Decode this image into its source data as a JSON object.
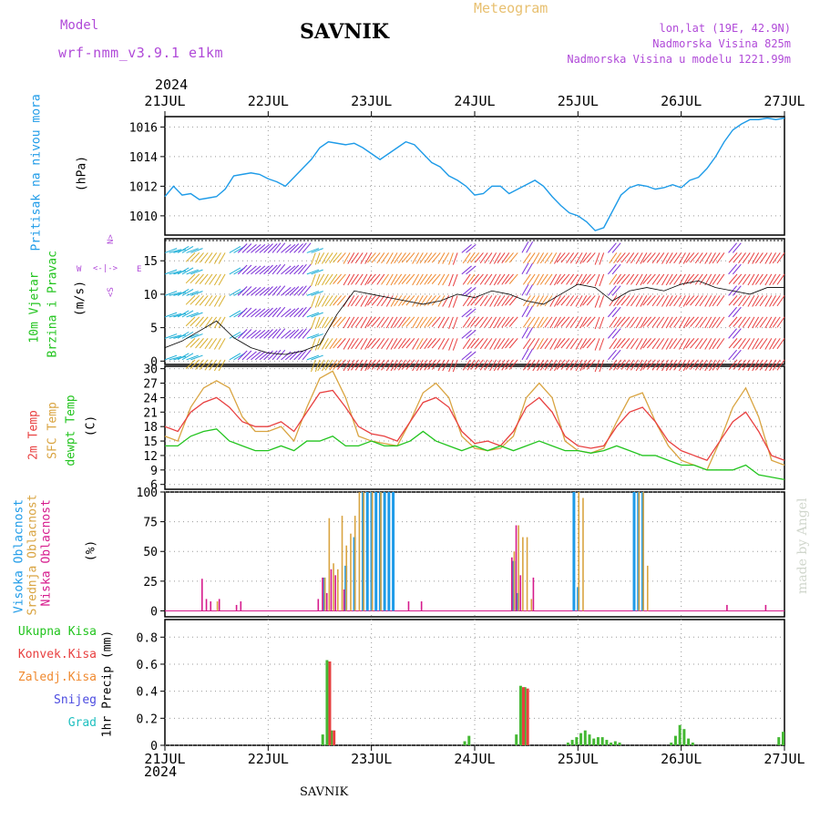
{
  "header": {
    "model_label": "Model",
    "model_name": "wrf-nmm_v3.9.1 e1km",
    "title": "SAVNIK",
    "meteogram": "Meteogram",
    "lonlat": "lon,lat (19E, 42.9N)",
    "elevation": "Nadmorska Visina 825m",
    "elevation_model": "Nadmorska Visina u modelu 1221.99m"
  },
  "footer": {
    "station": "SAVNIK",
    "watermark": "made by Angel"
  },
  "colors": {
    "pressure": "#1e9be8",
    "temp2m": "#e84040",
    "sfc": "#d9a441",
    "dew": "#22c41e",
    "high_cloud": "#1e9be8",
    "mid_cloud": "#d9a441",
    "low_cloud": "#d61a8c",
    "total_precip": "#44b833",
    "conv_precip": "#e84040",
    "frz_precip": "#f08a30",
    "snow": "#4b4be0",
    "hail": "#20c0c0",
    "label_purple": "#b04ad8"
  },
  "axes": {
    "top_year": "2024",
    "bottom_year": "2024",
    "dates": [
      "21JUL",
      "22JUL",
      "23JUL",
      "24JUL",
      "25JUL",
      "26JUL",
      "27JUL"
    ]
  },
  "panels": {
    "pressure": {
      "label1": "Pritisak na nivou mora",
      "unit": "(hPa)",
      "ticks": [
        "1010",
        "1012",
        "1014",
        "1016"
      ]
    },
    "wind": {
      "label1": "10m Vjetar",
      "label2": "Brzina i Pravac",
      "unit": "(m/s)",
      "ticks": [
        "0",
        "5",
        "10",
        "15"
      ],
      "compass": {
        "n": "N",
        "w": "W",
        "e": "E",
        "s": "S"
      }
    },
    "temp": {
      "label1": "2m Temp",
      "label2": "SFC Temp",
      "label3": "dewpt Temp",
      "unit": "(C)",
      "ticks": [
        "6",
        "9",
        "12",
        "15",
        "18",
        "21",
        "24",
        "27",
        "30"
      ]
    },
    "cloud": {
      "label1": "Visoka Oblacnost",
      "label2": "Srednja Oblacnost",
      "label3": "Niska Oblacnost",
      "unit": "(%)",
      "ticks": [
        "0",
        "25",
        "50",
        "75",
        "100"
      ]
    },
    "precip": {
      "labels": [
        "Ukupna Kisa",
        "Konvek.Kisa",
        "Zaledj.Kisa",
        "Snijeg",
        "Grad"
      ],
      "unit": "1hr Precip (mm)",
      "ticks": [
        "0",
        "0.2",
        "0.4",
        "0.6",
        "0.8"
      ]
    }
  },
  "chart_data": [
    {
      "type": "line",
      "title": "Pritisak na nivou mora",
      "ylabel": "(hPa)",
      "ylim": [
        1008.7,
        1016.7
      ],
      "xlim": [
        0,
        144
      ],
      "x_unit": "hours from 21JUL 00",
      "grid": true,
      "series": [
        {
          "name": "Pritisak na nivou mora",
          "x": [
            0,
            2,
            4,
            6,
            8,
            10,
            12,
            14,
            16,
            18,
            20,
            22,
            24,
            26,
            28,
            30,
            32,
            34,
            36,
            38,
            40,
            42,
            44,
            46,
            48,
            50,
            52,
            54,
            56,
            58,
            60,
            62,
            64,
            66,
            68,
            70,
            72,
            74,
            76,
            78,
            80,
            82,
            84,
            86,
            88,
            90,
            92,
            94,
            96,
            98,
            100,
            102,
            104,
            106,
            108,
            110,
            112,
            114,
            116,
            118,
            120,
            122,
            124,
            126,
            128,
            130,
            132,
            134,
            136,
            138,
            140,
            142,
            144
          ],
          "values": [
            1011.3,
            1012.0,
            1011.4,
            1011.5,
            1011.1,
            1011.2,
            1011.3,
            1011.8,
            1012.7,
            1012.8,
            1012.9,
            1012.8,
            1012.5,
            1012.3,
            1012.0,
            1012.6,
            1013.2,
            1013.8,
            1014.6,
            1015.0,
            1014.9,
            1014.8,
            1014.9,
            1014.6,
            1014.2,
            1013.8,
            1014.2,
            1014.6,
            1015.0,
            1014.8,
            1014.2,
            1013.6,
            1013.3,
            1012.7,
            1012.4,
            1012.0,
            1011.4,
            1011.5,
            1012.0,
            1012.0,
            1011.5,
            1011.8,
            1012.1,
            1012.4,
            1012.0,
            1011.3,
            1010.7,
            1010.2,
            1010.0,
            1009.6,
            1009.0,
            1009.2,
            1010.3,
            1011.4,
            1011.9,
            1012.1,
            1012.0,
            1011.8,
            1011.9,
            1012.1,
            1011.9,
            1012.4,
            1012.6,
            1013.2,
            1014.0,
            1015.0,
            1015.8,
            1016.2,
            1016.5,
            1016.5,
            1016.6,
            1016.5,
            1016.6
          ]
        }
      ]
    },
    {
      "type": "line",
      "title": "10m Vjetar Brzina i Pravac",
      "ylabel": "(m/s)",
      "ylim": [
        -0.5,
        18.3
      ],
      "xlim": [
        0,
        144
      ],
      "grid": true,
      "series": [
        {
          "name": "Brzina",
          "x": [
            0,
            4,
            8,
            12,
            16,
            20,
            24,
            28,
            32,
            36,
            40,
            44,
            48,
            52,
            56,
            60,
            64,
            68,
            72,
            76,
            80,
            84,
            88,
            92,
            96,
            100,
            104,
            108,
            112,
            116,
            120,
            124,
            128,
            132,
            136,
            140,
            144
          ],
          "values": [
            2.0,
            3.0,
            4.5,
            6.0,
            3.5,
            2.0,
            1.2,
            1.0,
            1.5,
            2.5,
            7.0,
            10.5,
            10.0,
            9.5,
            9.0,
            8.5,
            9.0,
            10.0,
            9.5,
            10.5,
            10.0,
            9.0,
            8.5,
            10.0,
            11.5,
            11.0,
            9.0,
            10.5,
            11.0,
            10.5,
            11.5,
            12.0,
            11.0,
            10.5,
            10.0,
            11.0,
            11.0
          ]
        }
      ]
    },
    {
      "type": "line",
      "title": "2m Temp / SFC Temp / dewpt Temp",
      "ylabel": "(C)",
      "ylim": [
        5,
        30.5
      ],
      "xlim": [
        0,
        144
      ],
      "grid": true,
      "series": [
        {
          "name": "2m Temp",
          "x": [
            0,
            3,
            6,
            9,
            12,
            15,
            18,
            21,
            24,
            27,
            30,
            33,
            36,
            39,
            42,
            45,
            48,
            51,
            54,
            57,
            60,
            63,
            66,
            69,
            72,
            75,
            78,
            81,
            84,
            87,
            90,
            93,
            96,
            99,
            102,
            105,
            108,
            111,
            114,
            117,
            120,
            123,
            126,
            129,
            132,
            135,
            138,
            141,
            144
          ],
          "values": [
            18,
            17,
            21,
            23,
            24,
            22,
            19,
            18,
            18,
            19,
            17,
            21,
            25,
            25.5,
            22,
            18,
            16.5,
            16,
            15,
            19,
            23,
            24,
            22,
            17,
            14.5,
            15,
            14,
            17,
            22,
            24,
            21,
            16,
            14,
            13.5,
            14,
            18,
            21,
            22,
            19,
            15,
            13,
            12,
            11,
            15,
            19,
            21,
            17,
            12,
            11
          ]
        },
        {
          "name": "SFC Temp",
          "x": [
            0,
            3,
            6,
            9,
            12,
            15,
            18,
            21,
            24,
            27,
            30,
            33,
            36,
            39,
            42,
            45,
            48,
            51,
            54,
            57,
            60,
            63,
            66,
            69,
            72,
            75,
            78,
            81,
            84,
            87,
            90,
            93,
            96,
            99,
            102,
            105,
            108,
            111,
            114,
            117,
            120,
            123,
            126,
            129,
            132,
            135,
            138,
            141,
            144
          ],
          "values": [
            16,
            15,
            22,
            26,
            27.5,
            26,
            20,
            17,
            17,
            18,
            15,
            22,
            28,
            29.5,
            24,
            16,
            15,
            14.5,
            14,
            19,
            25,
            27,
            24,
            16,
            13.5,
            13,
            13.5,
            16,
            24,
            27,
            24,
            15,
            13,
            12.5,
            13.5,
            19,
            24,
            25,
            19,
            14,
            11,
            10,
            9,
            15,
            22,
            26,
            20,
            11,
            10
          ]
        },
        {
          "name": "dewpt Temp",
          "x": [
            0,
            3,
            6,
            9,
            12,
            15,
            18,
            21,
            24,
            27,
            30,
            33,
            36,
            39,
            42,
            45,
            48,
            51,
            54,
            57,
            60,
            63,
            66,
            69,
            72,
            75,
            78,
            81,
            84,
            87,
            90,
            93,
            96,
            99,
            102,
            105,
            108,
            111,
            114,
            117,
            120,
            123,
            126,
            129,
            132,
            135,
            138,
            141,
            144
          ],
          "values": [
            14,
            14,
            16,
            17,
            17.5,
            15,
            14,
            13,
            13,
            14,
            13,
            15,
            15,
            16,
            14,
            14,
            15,
            14,
            14,
            15,
            17,
            15,
            14,
            13,
            14,
            13,
            14,
            13,
            14,
            15,
            14,
            13,
            13,
            12.5,
            13,
            14,
            13,
            12,
            12,
            11,
            10,
            10,
            9,
            9,
            9,
            10,
            8,
            7.5,
            7
          ]
        }
      ]
    },
    {
      "type": "bar",
      "title": "Oblacnost",
      "ylabel": "(%)",
      "ylim": [
        -5,
        100
      ],
      "xlim": [
        0,
        144
      ],
      "grid": true,
      "series": [
        {
          "name": "Visoka Oblacnost",
          "x": [
            37,
            42,
            44,
            46,
            47,
            48,
            49,
            50,
            51,
            52,
            53,
            81,
            82,
            95,
            96,
            109,
            110,
            111
          ],
          "values": [
            28,
            38,
            62,
            100,
            100,
            100,
            100,
            100,
            100,
            100,
            100,
            42,
            15,
            100,
            20,
            100,
            100,
            100
          ]
        },
        {
          "name": "Srednja Oblacnost",
          "x": [
            12,
            37,
            38,
            39,
            40,
            41,
            42,
            43,
            44,
            45,
            46,
            48,
            50,
            81,
            82,
            83,
            84,
            85,
            96,
            97,
            110,
            111,
            112
          ],
          "values": [
            8,
            28,
            78,
            40,
            35,
            80,
            55,
            65,
            80,
            100,
            100,
            100,
            100,
            50,
            72,
            62,
            62,
            10,
            100,
            95,
            100,
            100,
            38
          ]
        },
        {
          "name": "Niska Oblacnost",
          "x": [
            9,
            10,
            11,
            13,
            17,
            18,
            36,
            37,
            38,
            39,
            40,
            42,
            57,
            60,
            81,
            82,
            83,
            86,
            131,
            140
          ],
          "values": [
            27,
            10,
            8,
            10,
            5,
            8,
            10,
            28,
            15,
            35,
            30,
            18,
            8,
            8,
            45,
            72,
            30,
            28,
            5,
            5
          ]
        }
      ]
    },
    {
      "type": "bar",
      "title": "1hr Precip",
      "ylabel": "1hr Precip (mm)",
      "ylim": [
        0,
        0.93
      ],
      "xlim": [
        0,
        144
      ],
      "grid": true,
      "series": [
        {
          "name": "Ukupna Kisa",
          "x": [
            37,
            38,
            39,
            70,
            71,
            82,
            83,
            84,
            94,
            95,
            96,
            97,
            98,
            99,
            100,
            101,
            102,
            103,
            104,
            105,
            106,
            118,
            119,
            120,
            121,
            122,
            123,
            143,
            144
          ],
          "values": [
            0.08,
            0.63,
            0.11,
            0.03,
            0.07,
            0.08,
            0.44,
            0.43,
            0.02,
            0.04,
            0.06,
            0.09,
            0.11,
            0.08,
            0.05,
            0.06,
            0.06,
            0.04,
            0.02,
            0.03,
            0.02,
            0.02,
            0.07,
            0.15,
            0.12,
            0.05,
            0.02,
            0.06,
            0.1
          ]
        },
        {
          "name": "Konvek.Kisa",
          "x": [
            38,
            39,
            83,
            84
          ],
          "values": [
            0.62,
            0.11,
            0.43,
            0.42
          ]
        }
      ]
    },
    {
      "type": "scatter",
      "title": "10m Vjetar Pravac",
      "series": [
        {
          "name": "Pravac",
          "x": [
            0,
            2,
            4,
            6,
            8,
            10,
            12,
            14,
            16,
            18,
            20,
            22,
            24,
            26,
            28,
            30,
            32,
            34,
            36,
            38,
            40,
            42,
            44,
            46,
            48,
            50,
            52,
            54,
            56,
            58,
            60,
            62,
            64,
            66,
            68,
            70,
            72,
            74,
            76,
            78,
            80,
            82,
            84,
            86,
            88,
            90,
            92,
            94,
            96,
            98,
            100,
            102,
            104,
            106,
            108,
            110,
            112,
            114,
            116,
            118,
            120,
            122,
            124,
            126,
            128,
            130,
            132,
            134,
            136,
            138,
            140,
            142,
            144
          ],
          "values": [
            70,
            75,
            60,
            70,
            225,
            220,
            215,
            210,
            60,
            45,
            50,
            50,
            45,
            40,
            50,
            45,
            40,
            70,
            200,
            210,
            215,
            220,
            210,
            215,
            210,
            220,
            215,
            210,
            215,
            220,
            210,
            215,
            220,
            210,
            200,
            50,
            215,
            220,
            215,
            210,
            215,
            220,
            30,
            215,
            210,
            215,
            210,
            220,
            215,
            210,
            220,
            200,
            40,
            215,
            220,
            215,
            210,
            220,
            215,
            210,
            215,
            210,
            220,
            215,
            210,
            215,
            40,
            220,
            215,
            210,
            215,
            210,
            215
          ]
        }
      ]
    }
  ]
}
